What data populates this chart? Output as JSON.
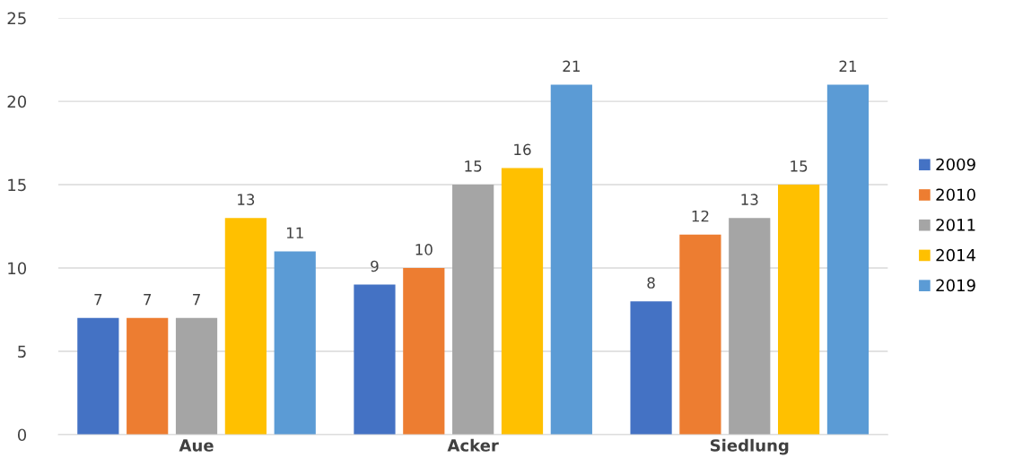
{
  "chart_data": {
    "type": "bar",
    "categories": [
      "Aue",
      "Acker",
      "Siedlung"
    ],
    "series": [
      {
        "name": "2009",
        "color": "#4472c4",
        "values": [
          7,
          9,
          8
        ]
      },
      {
        "name": "2010",
        "color": "#ed7d31",
        "values": [
          7,
          10,
          12
        ]
      },
      {
        "name": "2011",
        "color": "#a5a5a5",
        "values": [
          7,
          15,
          13
        ]
      },
      {
        "name": "2014",
        "color": "#ffc000",
        "values": [
          13,
          16,
          15
        ]
      },
      {
        "name": "2019",
        "color": "#5b9bd5",
        "values": [
          11,
          21,
          21
        ]
      }
    ],
    "ylim": [
      0,
      25
    ],
    "yticks": [
      0,
      5,
      10,
      15,
      20,
      25
    ],
    "grid": "y",
    "legend": "right",
    "data_labels": true
  }
}
